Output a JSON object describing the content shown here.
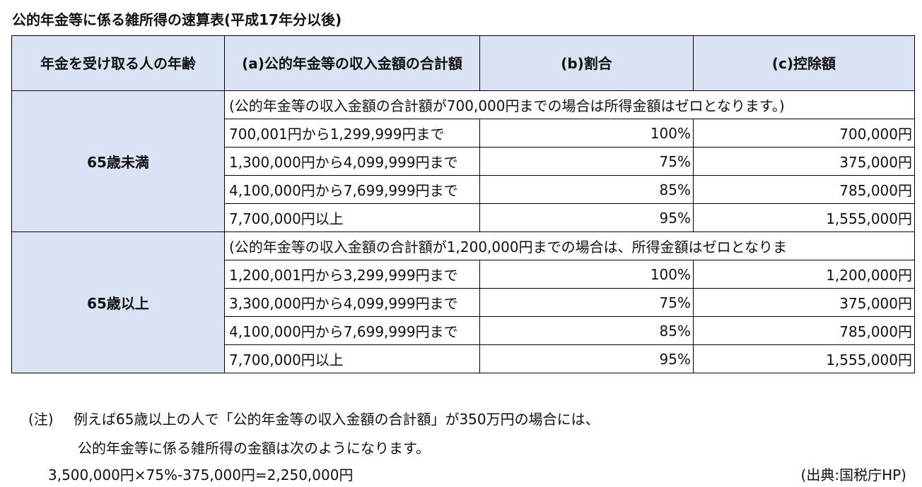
{
  "title": "公的年金等に係る雑所得の速算表(平成17年分以後)",
  "table": {
    "headers": {
      "age": "年金を受け取る人の年齢",
      "a": "(a)公的年金等の収入金額の合計額",
      "b": "(b)割合",
      "c": "(c)控除額"
    },
    "groups": [
      {
        "age": "65歳未満",
        "note": "(公的年金等の収入金額の合計額が700,000円までの場合は所得金額はゼロとなります。)",
        "rows": [
          {
            "range": "700,001円から1,299,999円まで",
            "rate": "100%",
            "deduction": "700,000円"
          },
          {
            "range": "1,300,000円から4,099,999円まで",
            "rate": "75%",
            "deduction": "375,000円"
          },
          {
            "range": "4,100,000円から7,699,999円まで",
            "rate": "85%",
            "deduction": "785,000円"
          },
          {
            "range": "7,700,000円以上",
            "rate": "95%",
            "deduction": "1,555,000円"
          }
        ]
      },
      {
        "age": "65歳以上",
        "note": "(公的年金等の収入金額の合計額が1,200,000円までの場合は、所得金額はゼロとなりま",
        "rows": [
          {
            "range": "1,200,001円から3,299,999円まで",
            "rate": "100%",
            "deduction": "1,200,000円"
          },
          {
            "range": "3,300,000円から4,099,999円まで",
            "rate": "75%",
            "deduction": "375,000円"
          },
          {
            "range": "4,100,000円から7,699,999円まで",
            "rate": "85%",
            "deduction": "785,000円"
          },
          {
            "range": "7,700,000円以上",
            "rate": "95%",
            "deduction": "1,555,000円"
          }
        ]
      }
    ]
  },
  "footnote": {
    "label": "(注)",
    "line1": "例えば65歳以上の人で「公的年金等の収入金額の合計額」が350万円の場合には、",
    "line2": "公的年金等に係る雑所得の金額は次のようになります。",
    "formula": "3,500,000円×75%-375,000円=2,250,000円",
    "source": "(出典:国税庁HP)"
  }
}
